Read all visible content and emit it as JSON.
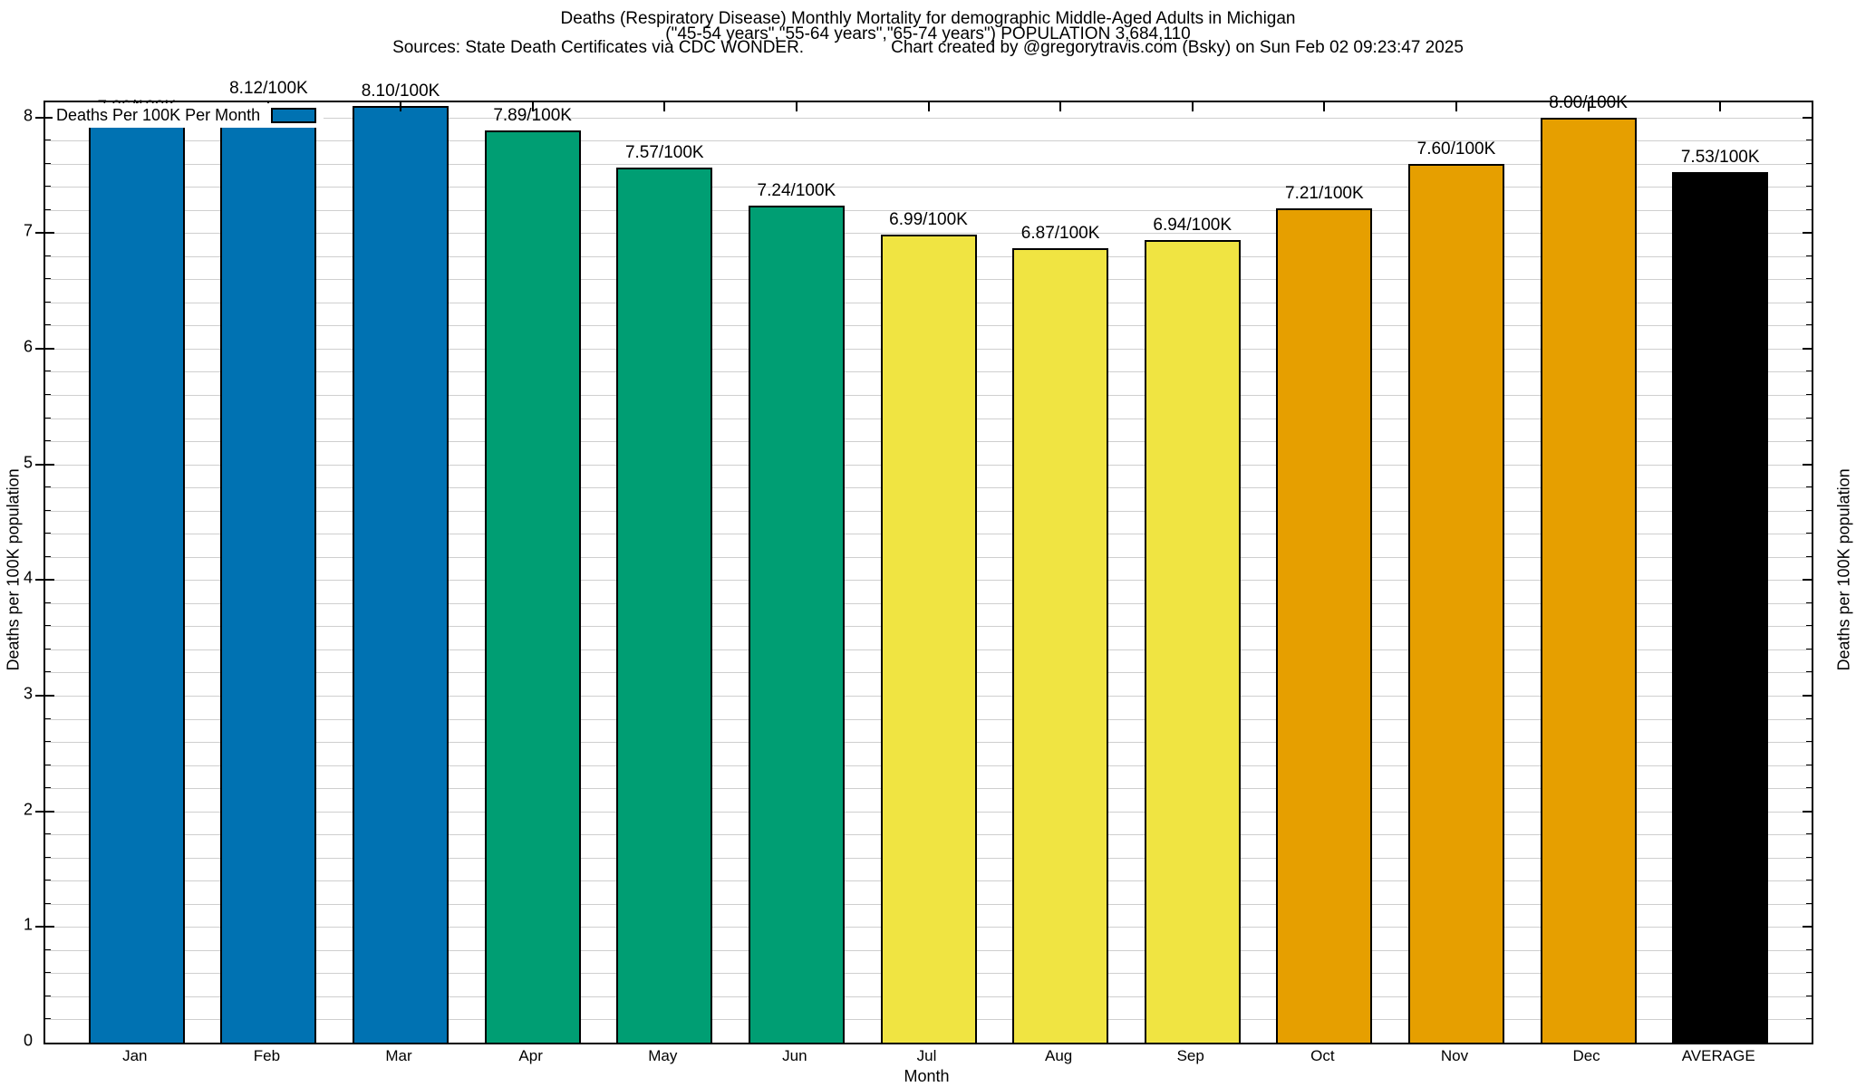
{
  "header": {
    "title_line1": "Deaths (Respiratory Disease) Monthly Mortality for demographic Middle-Aged Adults in Michigan",
    "title_line2": "(\"45-54 years\",\"55-64 years\",\"65-74 years\") POPULATION 3,684,110",
    "sources": "Sources: State Death Certificates via CDC WONDER.",
    "credit": "Chart created by @gregorytravis.com (Bsky) on Sun Feb 02 09:23:47 2025"
  },
  "legend": {
    "label": "Deaths Per 100K Per Month",
    "swatch_color": "#0072b2"
  },
  "chart_data": {
    "type": "bar",
    "title": "Deaths (Respiratory Disease) Monthly Mortality for demographic Middle-Aged Adults in Michigan (\"45-54 years\",\"55-64 years\",\"65-74 years\") POPULATION 3,684,110",
    "xlabel": "Month",
    "ylabel_left": "Deaths per 100K population",
    "ylabel_right": "Deaths per 100K population",
    "legend_label": "Deaths Per 100K Per Month",
    "legend_position": "top-left-inside",
    "grid": true,
    "ylim": [
      0,
      8.13
    ],
    "yticks": [
      0,
      1,
      2,
      3,
      4,
      5,
      6,
      7,
      8
    ],
    "minor_tick_step": 0.2,
    "categories": [
      "Jan",
      "Feb",
      "Mar",
      "Apr",
      "May",
      "Jun",
      "Jul",
      "Aug",
      "Sep",
      "Oct",
      "Nov",
      "Dec",
      "AVERAGE"
    ],
    "values": [
      7.96,
      8.12,
      8.1,
      7.89,
      7.57,
      7.24,
      6.99,
      6.87,
      6.94,
      7.21,
      7.6,
      8.0,
      7.53
    ],
    "bar_labels": [
      "7.96/100K",
      "8.12/100K",
      "8.10/100K",
      "7.89/100K",
      "7.57/100K",
      "7.24/100K",
      "6.99/100K",
      "6.87/100K",
      "6.94/100K",
      "7.21/100K",
      "7.60/100K",
      "8.00/100K",
      "7.53/100K"
    ],
    "bar_colors": [
      "#0072b2",
      "#0072b2",
      "#0072b2",
      "#009e73",
      "#009e73",
      "#009e73",
      "#f0e442",
      "#f0e442",
      "#f0e442",
      "#e69f00",
      "#e69f00",
      "#e69f00",
      "#000000"
    ],
    "palette": {
      "winter_blue": "#0072b2",
      "spring_green": "#009e73",
      "summer_yellow": "#f0e442",
      "fall_orange": "#e69f00",
      "average_black": "#000000",
      "gridline_gray": "#cfcfcf"
    }
  }
}
